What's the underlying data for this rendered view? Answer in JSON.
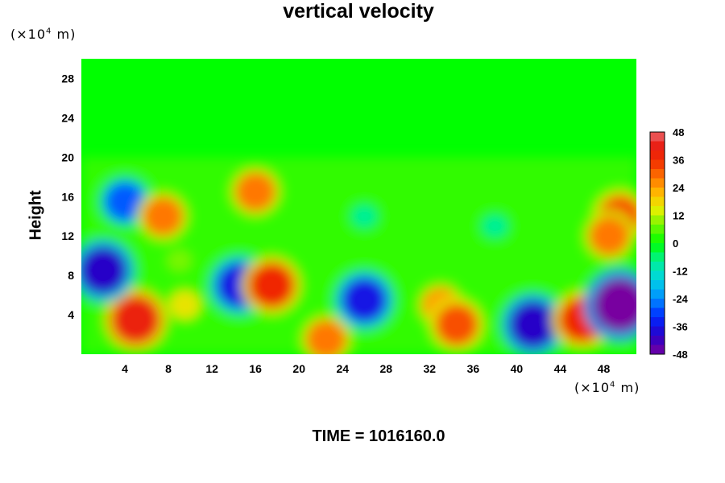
{
  "chart_data": {
    "type": "heatmap",
    "title": "vertical velocity",
    "xlabel": "",
    "ylabel": "Height",
    "x_unit": "(×10⁴ m)",
    "y_unit": "(×10⁴ m)",
    "x_unit_base": "(×10",
    "x_unit_exp": "4",
    "x_unit_tail": " m)",
    "xlim": [
      0,
      51
    ],
    "ylim": [
      0,
      30
    ],
    "xticks": [
      4,
      8,
      12,
      16,
      20,
      24,
      28,
      32,
      36,
      40,
      44,
      48
    ],
    "yticks": [
      4,
      8,
      12,
      16,
      20,
      24,
      28
    ],
    "colorbar": {
      "min": -48,
      "max": 48,
      "step": 4,
      "ticks": [
        48,
        36,
        24,
        12,
        0,
        -12,
        -24,
        -36,
        -48
      ]
    },
    "cells": [
      {
        "x": 5,
        "y": 3.5,
        "value": 40
      },
      {
        "x": 9.5,
        "y": 5,
        "value": 16
      },
      {
        "x": 14.5,
        "y": 7,
        "value": -36
      },
      {
        "x": 17.5,
        "y": 7,
        "value": 36
      },
      {
        "x": 9,
        "y": 9.5,
        "value": 8
      },
      {
        "x": 22.5,
        "y": 1.5,
        "value": 28
      },
      {
        "x": 26,
        "y": 5.5,
        "value": -36
      },
      {
        "x": 33,
        "y": 5,
        "value": 24
      },
      {
        "x": 34.5,
        "y": 3,
        "value": 32
      },
      {
        "x": 41.5,
        "y": 3,
        "value": -40
      },
      {
        "x": 46,
        "y": 3.5,
        "value": 36
      },
      {
        "x": 49.5,
        "y": 5,
        "value": -48
      },
      {
        "x": 2,
        "y": 8.5,
        "value": -40
      },
      {
        "x": 4,
        "y": 15.5,
        "value": -28
      },
      {
        "x": 7.5,
        "y": 14,
        "value": 28
      },
      {
        "x": 16,
        "y": 16.5,
        "value": 28
      },
      {
        "x": 49.5,
        "y": 14,
        "value": 32
      },
      {
        "x": 48.5,
        "y": 12,
        "value": 28
      },
      {
        "x": 38,
        "y": 13,
        "value": -8
      },
      {
        "x": 26,
        "y": 14,
        "value": -8
      }
    ]
  },
  "footer": {
    "time_label": "TIME = 1016160.0"
  }
}
